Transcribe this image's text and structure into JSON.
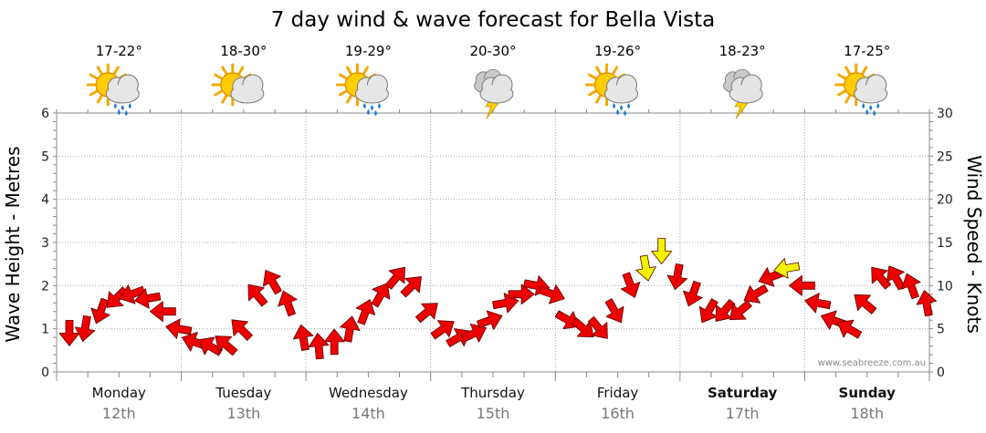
{
  "chart_data": {
    "type": "line",
    "title": "7 day wind & wave forecast for Bella Vista",
    "ylabel_left": "Wave Height - Metres",
    "ylabel_right": "Wind Speed - Knots",
    "ylim_left": [
      0,
      6
    ],
    "ylim_right": [
      0,
      30
    ],
    "yticks_left": [
      "0",
      "1",
      "2",
      "3",
      "4",
      "5",
      "6"
    ],
    "yticks_right": [
      "0",
      "5",
      "10",
      "15",
      "20",
      "25",
      "30"
    ],
    "grid": true,
    "credit": "www.seabreeze.com.au",
    "days": [
      {
        "name": "Monday",
        "date": "12th",
        "temp": "17-22°",
        "weather": "partly-sunny-rain-icon",
        "bold": false
      },
      {
        "name": "Tuesday",
        "date": "13th",
        "temp": "18-30°",
        "weather": "partly-sunny-icon",
        "bold": false
      },
      {
        "name": "Wednesday",
        "date": "14th",
        "temp": "19-29°",
        "weather": "partly-sunny-rain-icon",
        "bold": false
      },
      {
        "name": "Thursday",
        "date": "15th",
        "temp": "20-30°",
        "weather": "thunderstorm-icon",
        "bold": false
      },
      {
        "name": "Friday",
        "date": "16th",
        "temp": "19-26°",
        "weather": "partly-sunny-rain-icon",
        "bold": false
      },
      {
        "name": "Saturday",
        "date": "17th",
        "temp": "18-23°",
        "weather": "thunderstorm-icon",
        "bold": true
      },
      {
        "name": "Sunday",
        "date": "18th",
        "temp": "17-25°",
        "weather": "partly-sunny-rain-icon",
        "bold": true
      }
    ],
    "series": [
      {
        "name": "Wind Speed (knots)",
        "hours_from_start": [
          0,
          3,
          6,
          9,
          12,
          15,
          18,
          21,
          24,
          27,
          30,
          33,
          36,
          39,
          42,
          45,
          48,
          51,
          54,
          57,
          60,
          63,
          66,
          69,
          72,
          75,
          78,
          81,
          84,
          87,
          90,
          93,
          96,
          99,
          102,
          105,
          108,
          111,
          114,
          117,
          120,
          123,
          126,
          129,
          132,
          135,
          138,
          141,
          144,
          147,
          150,
          153,
          156,
          159,
          162,
          165
        ],
        "values": [
          4.5,
          5,
          7,
          8.5,
          9,
          8.5,
          7,
          5,
          3.5,
          3,
          3.2,
          5,
          9,
          10.5,
          8,
          4,
          3,
          3.5,
          5,
          7,
          9,
          11,
          10,
          7,
          5,
          4,
          4.5,
          6,
          8,
          9,
          10,
          9,
          6,
          5,
          5,
          7,
          10,
          12,
          14,
          11,
          9,
          7,
          7,
          7,
          9,
          11,
          12,
          10,
          8,
          6,
          5,
          8,
          11,
          11,
          10,
          8
        ],
        "direction_deg": [
          180,
          190,
          200,
          225,
          250,
          260,
          270,
          280,
          290,
          300,
          310,
          315,
          320,
          330,
          340,
          350,
          355,
          0,
          10,
          20,
          30,
          40,
          45,
          50,
          55,
          60,
          65,
          70,
          80,
          90,
          100,
          110,
          120,
          130,
          140,
          150,
          160,
          170,
          180,
          190,
          200,
          210,
          220,
          230,
          240,
          250,
          260,
          270,
          280,
          290,
          300,
          310,
          320,
          330,
          340,
          350
        ],
        "colors": {
          "strong": "#ee0000",
          "light": "#f2f200"
        }
      }
    ]
  },
  "legend": {
    "strong_color": "#ee0000",
    "light_color": "#f2f200"
  }
}
